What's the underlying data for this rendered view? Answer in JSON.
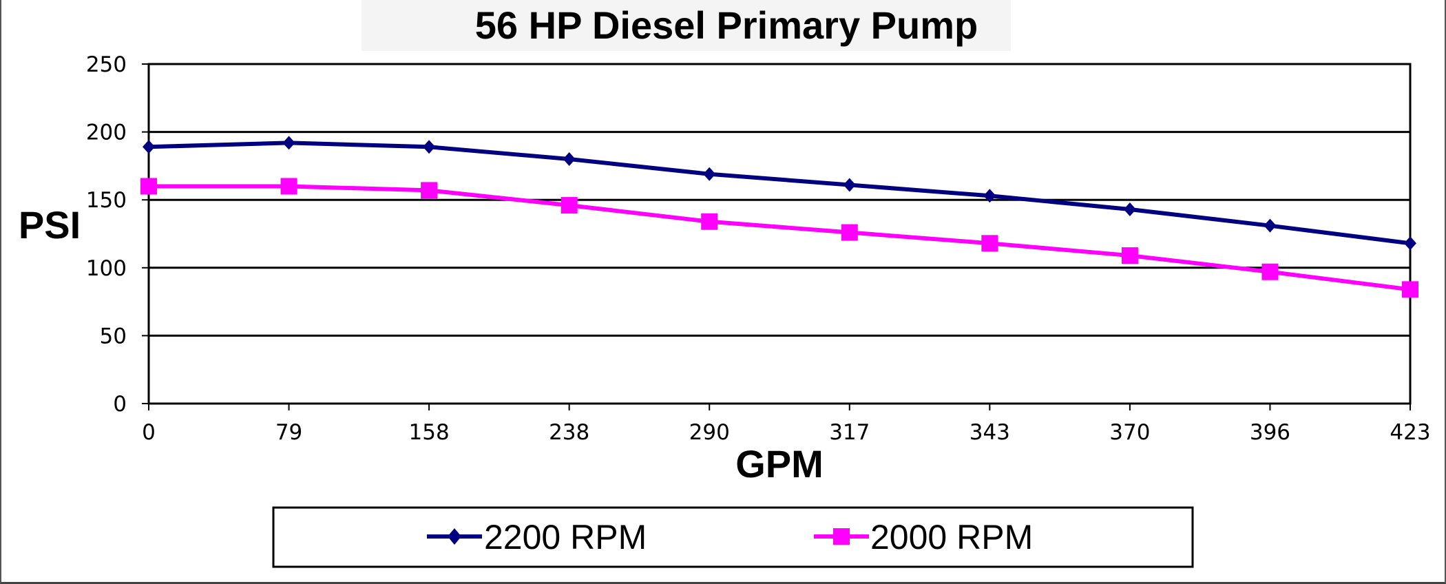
{
  "chart_data": {
    "type": "line",
    "title": "56 HP Diesel Primary Pump",
    "xlabel": "GPM",
    "ylabel": "PSI",
    "categories": [
      "0",
      "79",
      "158",
      "238",
      "290",
      "317",
      "343",
      "370",
      "396",
      "423"
    ],
    "series": [
      {
        "name": "2200 RPM",
        "color": "#000080",
        "marker": "diamond",
        "values": [
          189,
          192,
          189,
          180,
          169,
          161,
          153,
          143,
          131,
          118
        ]
      },
      {
        "name": "2000 RPM",
        "color": "#ff00ff",
        "marker": "square",
        "values": [
          160,
          160,
          157,
          146,
          134,
          126,
          118,
          109,
          97,
          84
        ]
      }
    ],
    "ylim": [
      0,
      250
    ],
    "yticks": [
      "0",
      "50",
      "100",
      "150",
      "200",
      "250"
    ],
    "grid": true,
    "legend_position": "bottom"
  }
}
